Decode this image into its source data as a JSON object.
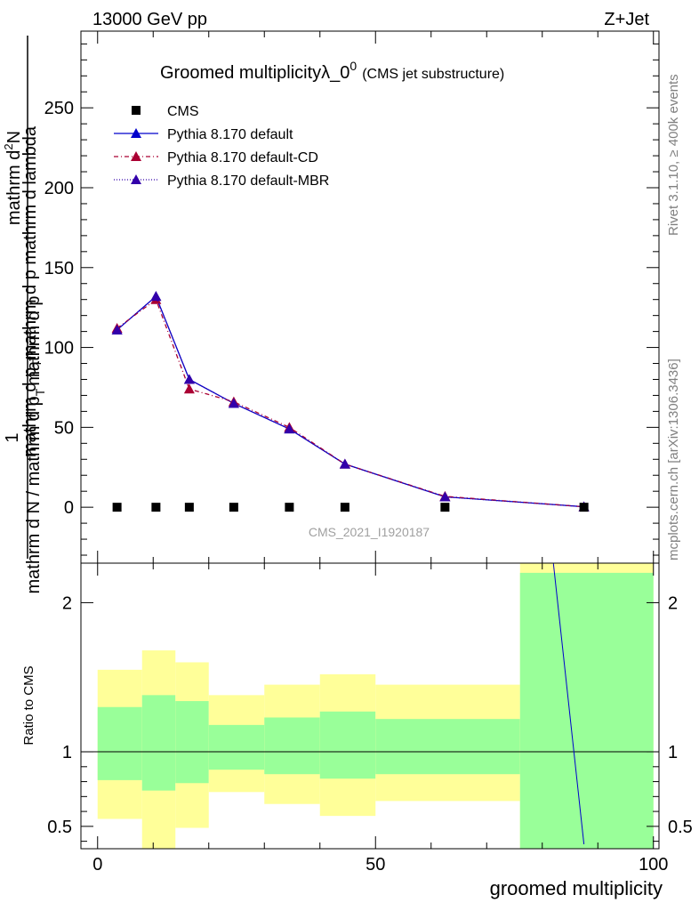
{
  "header": {
    "left": "13000 GeV pp",
    "right": "Z+Jet"
  },
  "title": {
    "main": "Groomed multiplicityλ_0",
    "sup": "0",
    "sub": "(CMS jet substructure)"
  },
  "side_labels": {
    "rivet": "Rivet 3.1.10, ≥ 400k events",
    "mcplots": "mcplots.cern.ch [arXiv:1306.3436]"
  },
  "watermark": "CMS_2021_I1920187",
  "y_axis_label": {
    "numerator_part1": "1",
    "denominator": "mathrm d N / mathrm d p",
    "denominator_sub": "T",
    "denominator_tail": "mathrm d p",
    "top_numerator": "mathrm d",
    "top_sup": "2",
    "top_numerator_tail": "N",
    "top_denominator": "mathrm d p",
    "top_denominator_sub": "T",
    "top_denominator_tail": " mathrm d lambda"
  },
  "ratio_label": "Ratio to CMS",
  "x_label": "groomed multiplicity",
  "legend": [
    {
      "name": "CMS",
      "marker": "square",
      "color": "#000000",
      "dash": ""
    },
    {
      "name": "Pythia 8.170 default",
      "marker": "triangle",
      "color": "#0000cc",
      "dash": ""
    },
    {
      "name": "Pythia 8.170 default-CD",
      "marker": "triangle",
      "color": "#aa0033",
      "dash": "5,3,1,3"
    },
    {
      "name": "Pythia 8.170 default-MBR",
      "marker": "triangle",
      "color": "#3300aa",
      "dash": "1,2"
    }
  ],
  "chart_data": {
    "type": "line",
    "main": {
      "xlim": [
        -3,
        101
      ],
      "ylim": [
        -35,
        298
      ],
      "yticks": [
        0,
        50,
        100,
        150,
        200,
        250
      ],
      "cms": {
        "x": [
          3.5,
          10.5,
          16.5,
          24.5,
          34.5,
          44.5,
          62.5,
          87.5
        ],
        "y": [
          0,
          0,
          0,
          0,
          0,
          0,
          0,
          0
        ]
      },
      "series": [
        {
          "name": "Pythia 8.170 default",
          "x": [
            3.5,
            10.5,
            16.5,
            24.5,
            34.5,
            44.5,
            62.5,
            87.5
          ],
          "y": [
            111,
            132,
            80,
            65,
            49,
            27,
            6.5,
            0.3
          ]
        },
        {
          "name": "Pythia 8.170 default-CD",
          "x": [
            3.5,
            10.5,
            16.5,
            24.5,
            34.5,
            44.5,
            62.5,
            87.5
          ],
          "y": [
            112,
            130,
            74,
            66,
            50,
            27,
            6.8,
            0.3
          ]
        },
        {
          "name": "Pythia 8.170 default-MBR",
          "x": [
            3.5,
            10.5,
            16.5,
            24.5,
            34.5,
            44.5,
            62.5,
            87.5
          ],
          "y": [
            111,
            132,
            80,
            65,
            49,
            27,
            6.5,
            0.3
          ]
        }
      ]
    },
    "ratio": {
      "xlim": [
        -3,
        101
      ],
      "ylim": [
        0.35,
        2.265
      ],
      "yticks": [
        0.5,
        1,
        2
      ],
      "xticks": [
        0,
        50,
        100
      ],
      "bands": [
        {
          "x0": 0,
          "x1": 8,
          "green": [
            0.81,
            1.3
          ],
          "yellow": [
            0.55,
            1.55
          ]
        },
        {
          "x0": 8,
          "x1": 14,
          "green": [
            0.74,
            1.38
          ],
          "yellow": [
            0.3,
            1.68
          ]
        },
        {
          "x0": 14,
          "x1": 20,
          "green": [
            0.79,
            1.34
          ],
          "yellow": [
            0.49,
            1.6
          ]
        },
        {
          "x0": 20,
          "x1": 30,
          "green": [
            0.88,
            1.18
          ],
          "yellow": [
            0.73,
            1.38
          ]
        },
        {
          "x0": 30,
          "x1": 40,
          "green": [
            0.85,
            1.23
          ],
          "yellow": [
            0.65,
            1.45
          ]
        },
        {
          "x0": 40,
          "x1": 50,
          "green": [
            0.82,
            1.27
          ],
          "yellow": [
            0.57,
            1.52
          ]
        },
        {
          "x0": 50,
          "x1": 76,
          "green": [
            0.85,
            1.22
          ],
          "yellow": [
            0.67,
            1.45
          ]
        },
        {
          "x0": 76,
          "x1": 100,
          "green": [
            0.3,
            2.2
          ],
          "yellow": [
            0.3,
            2.4
          ]
        }
      ],
      "mc_line": {
        "x": [
          82,
          87.5
        ],
        "y": [
          2.4,
          0.38
        ]
      }
    }
  }
}
